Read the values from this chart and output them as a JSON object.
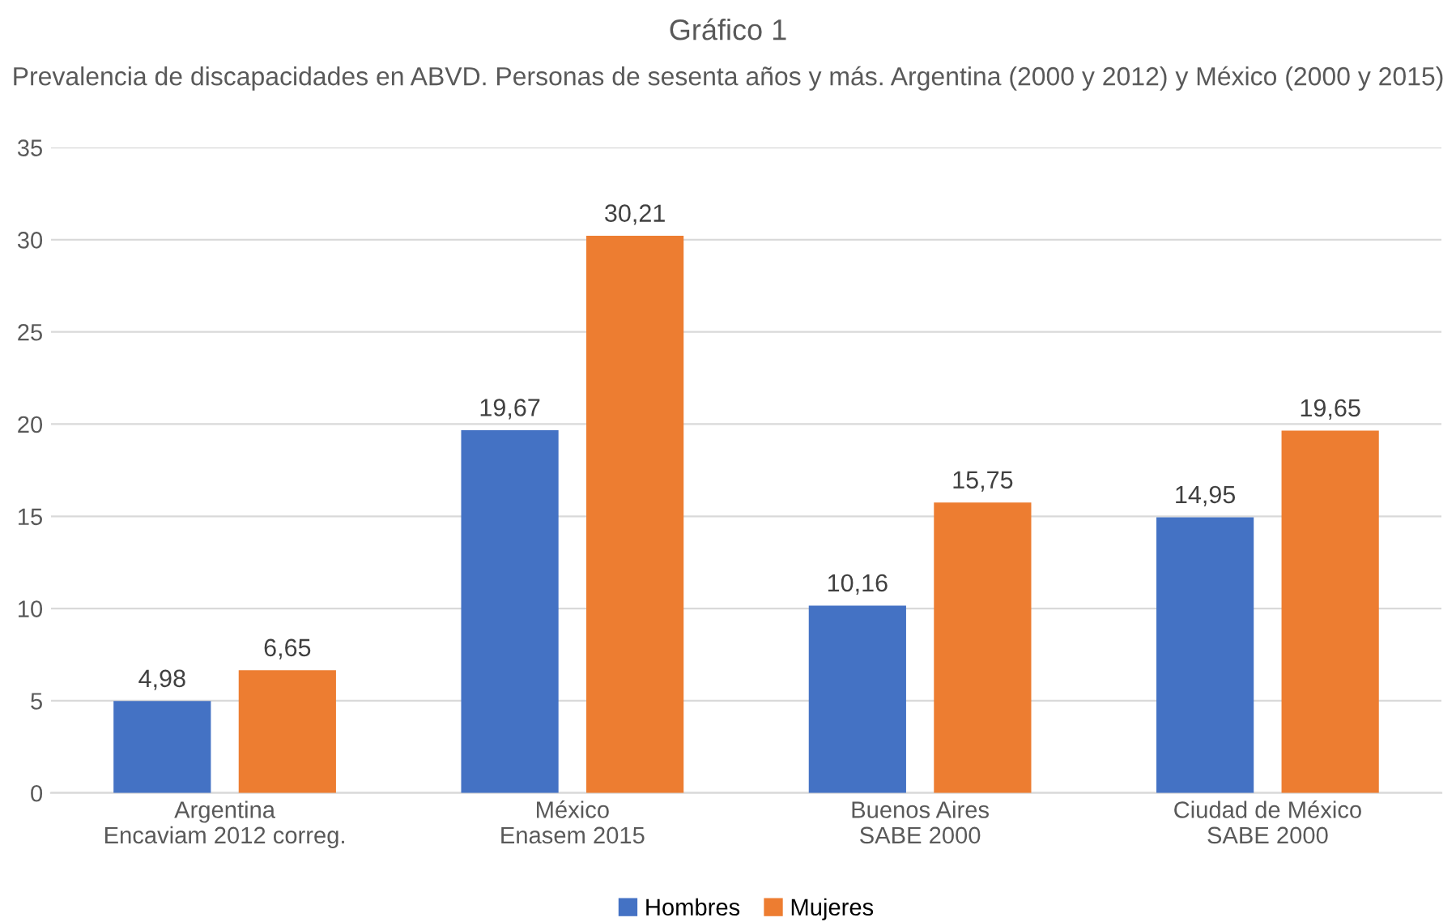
{
  "chart_data": {
    "type": "bar",
    "title": "Gráfico 1",
    "subtitle": "Prevalencia de discapacidades en ABVD. Personas de sesenta años y más. Argentina (2000 y 2012) y México (2000 y 2015)",
    "categories": [
      "Argentina\nEncaviam 2012 correg.",
      "México\nEnasem 2015",
      "Buenos Aires\nSABE 2000",
      "Ciudad de México\nSABE 2000"
    ],
    "series": [
      {
        "name": "Hombres",
        "color": "#4472c4",
        "values": [
          4.98,
          19.67,
          10.16,
          14.95
        ],
        "value_labels": [
          "4,98",
          "19,67",
          "10,16",
          "14,95"
        ]
      },
      {
        "name": "Mujeres",
        "color": "#ed7d31",
        "values": [
          6.65,
          30.21,
          15.75,
          19.65
        ],
        "value_labels": [
          "6,65",
          "30,21",
          "15,75",
          "19,65"
        ]
      }
    ],
    "ylim": [
      0,
      35
    ],
    "yticks": [
      0,
      5,
      10,
      15,
      20,
      25,
      30,
      35
    ],
    "grid": "y",
    "legend": "bottom"
  }
}
